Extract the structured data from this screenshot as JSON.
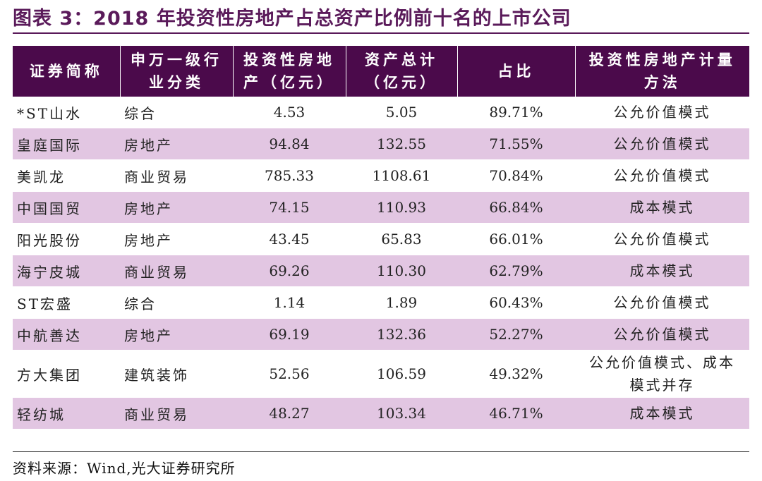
{
  "header": {
    "title": "图表 3：2018 年投资性房地产占总资产比例前十名的上市公司"
  },
  "table": {
    "columns": [
      "证券简称",
      "申万一级行业分类",
      "投资性房地产（亿元）",
      "资产总计（亿元）",
      "占比",
      "投资性房地产计量方法"
    ],
    "rows": [
      [
        "*ST山水",
        "综合",
        "4.53",
        "5.05",
        "89.71%",
        "公允价值模式"
      ],
      [
        "皇庭国际",
        "房地产",
        "94.84",
        "132.55",
        "71.55%",
        "公允价值模式"
      ],
      [
        "美凯龙",
        "商业贸易",
        "785.33",
        "1108.61",
        "70.84%",
        "公允价值模式"
      ],
      [
        "中国国贸",
        "房地产",
        "74.15",
        "110.93",
        "66.84%",
        "成本模式"
      ],
      [
        "阳光股份",
        "房地产",
        "43.45",
        "65.83",
        "66.01%",
        "公允价值模式"
      ],
      [
        "海宁皮城",
        "商业贸易",
        "69.26",
        "110.30",
        "62.79%",
        "成本模式"
      ],
      [
        "ST宏盛",
        "综合",
        "1.14",
        "1.89",
        "60.43%",
        "公允价值模式"
      ],
      [
        "中航善达",
        "房地产",
        "69.19",
        "132.36",
        "52.27%",
        "公允价值模式"
      ],
      [
        "方大集团",
        "建筑装饰",
        "52.56",
        "106.59",
        "49.32%",
        "公允价值模式、成本模式并存"
      ],
      [
        "轻纺城",
        "商业贸易",
        "48.27",
        "103.34",
        "46.71%",
        "成本模式"
      ]
    ]
  },
  "footer": {
    "source": "资料来源：Wind,光大证券研究所"
  }
}
